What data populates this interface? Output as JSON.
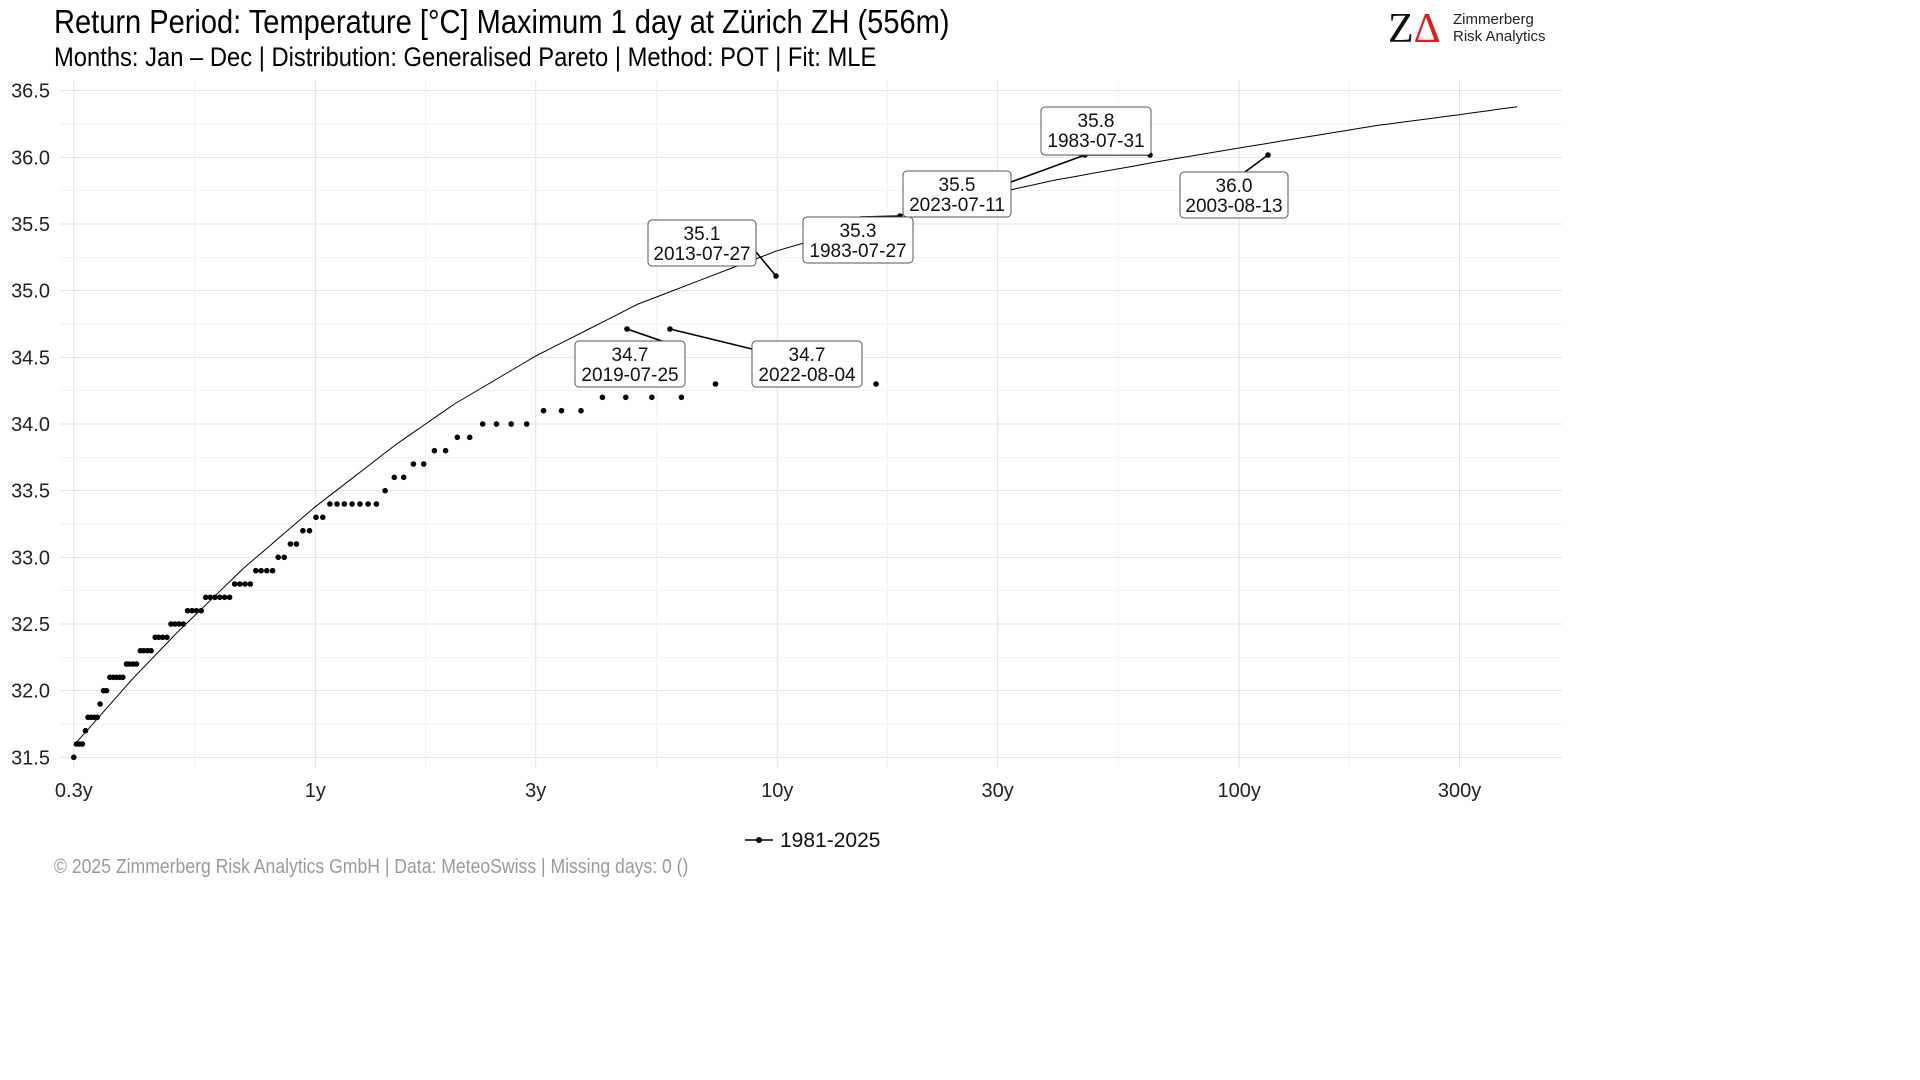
{
  "header": {
    "title": "Return Period: Temperature [°C] Maximum 1 day at Zürich  ZH (556m)",
    "subtitle": "Months: Jan – Dec | Distribution: Generalised Pareto | Method: POT | Fit: MLE"
  },
  "logo": {
    "letters_z": "Z",
    "letters_delta": "Δ",
    "line1": "Zimmerberg",
    "line2": "Risk Analytics",
    "accent_color": "#e01b1b"
  },
  "footer": {
    "text": "©  2025 Zimmerberg Risk Analytics GmbH | Data: MeteoSwiss | Missing days: 0 ()"
  },
  "chart_data": {
    "type": "scatter",
    "x_scale": "log",
    "x_unit": "return period (years)",
    "xlim": [
      0.28,
      500
    ],
    "ylim": [
      31.42,
      36.58
    ],
    "grid": true,
    "legend_position": "bottom",
    "x_ticks": [
      {
        "value": 0.3,
        "label": "0.3y"
      },
      {
        "value": 1,
        "label": "1y"
      },
      {
        "value": 3,
        "label": "3y"
      },
      {
        "value": 10,
        "label": "10y"
      },
      {
        "value": 30,
        "label": "30y"
      },
      {
        "value": 100,
        "label": "100y"
      },
      {
        "value": 300,
        "label": "300y"
      }
    ],
    "y_ticks": [
      {
        "value": 31.5,
        "label": "31.5"
      },
      {
        "value": 32.0,
        "label": "32.0"
      },
      {
        "value": 32.5,
        "label": "32.5"
      },
      {
        "value": 33.0,
        "label": "33.0"
      },
      {
        "value": 33.5,
        "label": "33.5"
      },
      {
        "value": 34.0,
        "label": "34.0"
      },
      {
        "value": 34.5,
        "label": "34.5"
      },
      {
        "value": 35.0,
        "label": "35.0"
      },
      {
        "value": 35.5,
        "label": "35.5"
      },
      {
        "value": 36.0,
        "label": "36.0"
      },
      {
        "value": 36.5,
        "label": "36.5"
      }
    ],
    "series": [
      {
        "name": "1981-2025",
        "color": "#000000",
        "points": [
          {
            "x": 0.3,
            "y": 31.5
          },
          {
            "x": 0.304,
            "y": 31.6
          },
          {
            "x": 0.308,
            "y": 31.6
          },
          {
            "x": 0.313,
            "y": 31.6
          },
          {
            "x": 0.318,
            "y": 31.7
          },
          {
            "x": 0.322,
            "y": 31.8
          },
          {
            "x": 0.327,
            "y": 31.8
          },
          {
            "x": 0.332,
            "y": 31.8
          },
          {
            "x": 0.337,
            "y": 31.8
          },
          {
            "x": 0.342,
            "y": 31.9
          },
          {
            "x": 0.348,
            "y": 32.0
          },
          {
            "x": 0.353,
            "y": 32.0
          },
          {
            "x": 0.359,
            "y": 32.1
          },
          {
            "x": 0.365,
            "y": 32.1
          },
          {
            "x": 0.371,
            "y": 32.1
          },
          {
            "x": 0.377,
            "y": 32.1
          },
          {
            "x": 0.383,
            "y": 32.1
          },
          {
            "x": 0.39,
            "y": 32.2
          },
          {
            "x": 0.396,
            "y": 32.2
          },
          {
            "x": 0.403,
            "y": 32.2
          },
          {
            "x": 0.41,
            "y": 32.2
          },
          {
            "x": 0.418,
            "y": 32.3
          },
          {
            "x": 0.425,
            "y": 32.3
          },
          {
            "x": 0.433,
            "y": 32.3
          },
          {
            "x": 0.441,
            "y": 32.3
          },
          {
            "x": 0.45,
            "y": 32.4
          },
          {
            "x": 0.458,
            "y": 32.4
          },
          {
            "x": 0.467,
            "y": 32.4
          },
          {
            "x": 0.477,
            "y": 32.4
          },
          {
            "x": 0.487,
            "y": 32.5
          },
          {
            "x": 0.497,
            "y": 32.5
          },
          {
            "x": 0.507,
            "y": 32.5
          },
          {
            "x": 0.518,
            "y": 32.5
          },
          {
            "x": 0.529,
            "y": 32.6
          },
          {
            "x": 0.541,
            "y": 32.6
          },
          {
            "x": 0.553,
            "y": 32.6
          },
          {
            "x": 0.566,
            "y": 32.6
          },
          {
            "x": 0.579,
            "y": 32.7
          },
          {
            "x": 0.592,
            "y": 32.7
          },
          {
            "x": 0.606,
            "y": 32.7
          },
          {
            "x": 0.621,
            "y": 32.7
          },
          {
            "x": 0.636,
            "y": 32.7
          },
          {
            "x": 0.652,
            "y": 32.7
          },
          {
            "x": 0.669,
            "y": 32.8
          },
          {
            "x": 0.686,
            "y": 32.8
          },
          {
            "x": 0.704,
            "y": 32.8
          },
          {
            "x": 0.723,
            "y": 32.8
          },
          {
            "x": 0.743,
            "y": 32.9
          },
          {
            "x": 0.763,
            "y": 32.9
          },
          {
            "x": 0.785,
            "y": 32.9
          },
          {
            "x": 0.808,
            "y": 32.9
          },
          {
            "x": 0.831,
            "y": 33.0
          },
          {
            "x": 0.856,
            "y": 33.0
          },
          {
            "x": 0.883,
            "y": 33.1
          },
          {
            "x": 0.91,
            "y": 33.1
          },
          {
            "x": 0.94,
            "y": 33.2
          },
          {
            "x": 0.971,
            "y": 33.2
          },
          {
            "x": 1.003,
            "y": 33.3
          },
          {
            "x": 1.038,
            "y": 33.3
          },
          {
            "x": 1.075,
            "y": 33.4
          },
          {
            "x": 1.114,
            "y": 33.4
          },
          {
            "x": 1.156,
            "y": 33.4
          },
          {
            "x": 1.201,
            "y": 33.4
          },
          {
            "x": 1.249,
            "y": 33.4
          },
          {
            "x": 1.301,
            "y": 33.4
          },
          {
            "x": 1.356,
            "y": 33.4
          },
          {
            "x": 1.416,
            "y": 33.5
          },
          {
            "x": 1.482,
            "y": 33.6
          },
          {
            "x": 1.553,
            "y": 33.6
          },
          {
            "x": 1.63,
            "y": 33.7
          },
          {
            "x": 1.716,
            "y": 33.7
          },
          {
            "x": 1.81,
            "y": 33.8
          },
          {
            "x": 1.914,
            "y": 33.8
          },
          {
            "x": 2.029,
            "y": 33.9
          },
          {
            "x": 2.158,
            "y": 33.9
          },
          {
            "x": 2.303,
            "y": 34.0
          },
          {
            "x": 2.467,
            "y": 34.0
          },
          {
            "x": 2.654,
            "y": 34.0
          },
          {
            "x": 2.868,
            "y": 34.0
          },
          {
            "x": 3.118,
            "y": 34.1
          },
          {
            "x": 3.411,
            "y": 34.1
          },
          {
            "x": 3.76,
            "y": 34.1
          },
          {
            "x": 4.182,
            "y": 34.2
          },
          {
            "x": 4.7,
            "y": 34.2
          },
          {
            "x": 5.351,
            "y": 34.2
          },
          {
            "x": 6.2,
            "y": 34.2
          },
          {
            "x": 7.351,
            "y": 34.3
          },
          {
            "x": 9.015,
            "y": 34.3
          },
          {
            "x": 11.63,
            "y": 34.3
          },
          {
            "x": 16.37,
            "y": 34.3
          }
        ]
      }
    ],
    "fit_curve": {
      "model": "Generalised Pareto",
      "color": "#000000",
      "points": [
        {
          "x": 0.3,
          "y": 31.59
        },
        {
          "x": 0.4,
          "y": 32.08
        },
        {
          "x": 0.5,
          "y": 32.43
        },
        {
          "x": 0.7,
          "y": 32.92
        },
        {
          "x": 1.0,
          "y": 33.38
        },
        {
          "x": 1.5,
          "y": 33.85
        },
        {
          "x": 2.0,
          "y": 34.15
        },
        {
          "x": 3.0,
          "y": 34.51
        },
        {
          "x": 5.0,
          "y": 34.9
        },
        {
          "x": 10.0,
          "y": 35.3
        },
        {
          "x": 20.0,
          "y": 35.6
        },
        {
          "x": 40.0,
          "y": 35.83
        },
        {
          "x": 70.0,
          "y": 35.98
        },
        {
          "x": 100,
          "y": 36.07
        },
        {
          "x": 150,
          "y": 36.17
        },
        {
          "x": 200,
          "y": 36.24
        },
        {
          "x": 300,
          "y": 36.32
        },
        {
          "x": 400,
          "y": 36.38
        }
      ]
    },
    "annotations": [
      {
        "value": "34.7",
        "date": "2019-07-25"
      },
      {
        "value": "34.7",
        "date": "2022-08-04"
      },
      {
        "value": "35.1",
        "date": "2013-07-27"
      },
      {
        "value": "35.3",
        "date": "1983-07-27"
      },
      {
        "value": "35.5",
        "date": "2023-07-11"
      },
      {
        "value": "35.8",
        "date": "1983-07-31"
      },
      {
        "value": "36.0",
        "date": "2003-08-13"
      }
    ]
  }
}
